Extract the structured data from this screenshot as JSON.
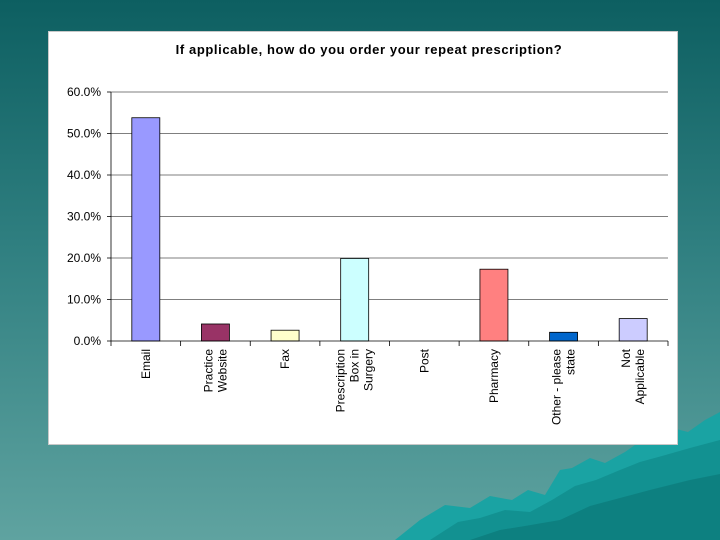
{
  "slide": {
    "background_color": "#2f7f80",
    "card_color": "#ffffff"
  },
  "chart_data": {
    "type": "bar",
    "title": "If applicable, how do you order your repeat prescription?",
    "xlabel": "",
    "ylabel": "",
    "ylim": [
      0,
      60
    ],
    "yticks": [
      "0.0%",
      "10.0%",
      "20.0%",
      "30.0%",
      "40.0%",
      "50.0%",
      "60.0%"
    ],
    "grid": true,
    "legend": "none",
    "categories": [
      [
        "Email"
      ],
      [
        "Practice",
        "Website"
      ],
      [
        "Fax"
      ],
      [
        "Prescription",
        "Box in",
        "Surgery"
      ],
      [
        "Post"
      ],
      [
        "Pharmacy"
      ],
      [
        "Other - please",
        "state"
      ],
      [
        "Not",
        "Applicable"
      ]
    ],
    "values": [
      53.8,
      4.1,
      2.6,
      19.9,
      0.0,
      17.3,
      2.1,
      5.4
    ],
    "colors": [
      "#9999ff",
      "#993366",
      "#ffffcc",
      "#ccffff",
      "#660066",
      "#ff8080",
      "#0066cc",
      "#ccccff"
    ]
  }
}
